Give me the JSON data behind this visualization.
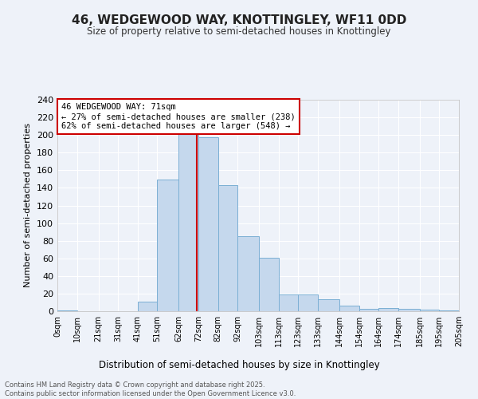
{
  "title": "46, WEDGEWOOD WAY, KNOTTINGLEY, WF11 0DD",
  "subtitle": "Size of property relative to semi-detached houses in Knottingley",
  "xlabel": "Distribution of semi-detached houses by size in Knottingley",
  "ylabel": "Number of semi-detached properties",
  "bin_labels": [
    "0sqm",
    "10sqm",
    "21sqm",
    "31sqm",
    "41sqm",
    "51sqm",
    "62sqm",
    "72sqm",
    "82sqm",
    "92sqm",
    "103sqm",
    "113sqm",
    "123sqm",
    "133sqm",
    "144sqm",
    "154sqm",
    "164sqm",
    "174sqm",
    "185sqm",
    "195sqm",
    "205sqm"
  ],
  "bar_heights": [
    1,
    0,
    0,
    0,
    11,
    149,
    201,
    197,
    143,
    85,
    61,
    19,
    19,
    14,
    6,
    3,
    4,
    3,
    2,
    1,
    0
  ],
  "bar_color": "#c5d8ed",
  "bar_edge_color": "#7bafd4",
  "background_color": "#eef2f9",
  "grid_color": "#ffffff",
  "vline_x": 71,
  "vline_color": "#cc0000",
  "annotation_title": "46 WEDGEWOOD WAY: 71sqm",
  "annotation_line1": "← 27% of semi-detached houses are smaller (238)",
  "annotation_line2": "62% of semi-detached houses are larger (548) →",
  "annotation_box_color": "#ffffff",
  "annotation_box_edge": "#cc0000",
  "ylim": [
    0,
    240
  ],
  "yticks": [
    0,
    20,
    40,
    60,
    80,
    100,
    120,
    140,
    160,
    180,
    200,
    220,
    240
  ],
  "footer_line1": "Contains HM Land Registry data © Crown copyright and database right 2025.",
  "footer_line2": "Contains public sector information licensed under the Open Government Licence v3.0.",
  "bin_edges": [
    0,
    10,
    21,
    31,
    41,
    51,
    62,
    72,
    82,
    92,
    103,
    113,
    123,
    133,
    144,
    154,
    164,
    174,
    185,
    195,
    205
  ],
  "xlim": [
    0,
    205
  ]
}
